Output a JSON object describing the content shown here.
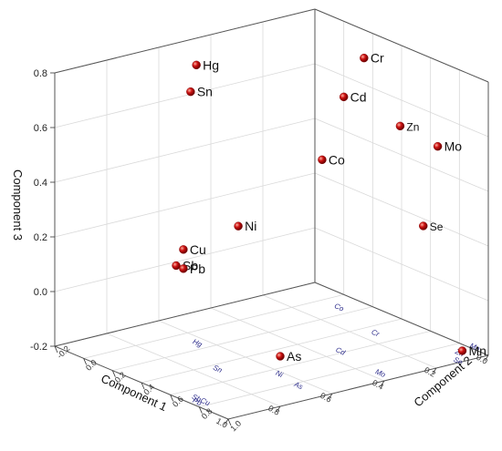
{
  "chart_data": {
    "type": "scatter",
    "dimensions": 3,
    "xlabel": "Component 1",
    "ylabel": "Component 2",
    "zlabel": "Component 3",
    "xlim": [
      0.0,
      1.0
    ],
    "ylim": [
      -0.2,
      1.0
    ],
    "zlim": [
      -0.2,
      0.8
    ],
    "xticks": [
      "0.0",
      "0.2",
      "0.4",
      "0.6",
      "0.8",
      "1.0"
    ],
    "yticks": [
      "-0.2",
      "0.0",
      "0.2",
      "0.4",
      "0.6",
      "0.8",
      "1.0"
    ],
    "zticks": [
      "-0.2",
      "0.0",
      "0.2",
      "0.4",
      "0.6",
      "0.8"
    ],
    "grid": true,
    "marker_color": "#cc1111",
    "projection_color": "#2a2a8a",
    "points": [
      {
        "label": "Cr",
        "x": 0.1,
        "y": 0.32,
        "z": 0.76
      },
      {
        "label": "Hg",
        "x": 0.5,
        "y": -0.12,
        "z": 0.73
      },
      {
        "label": "Sn",
        "x": 0.7,
        "y": 0.2,
        "z": 0.75
      },
      {
        "label": "Zn",
        "x": 0.2,
        "y": 0.75,
        "z": 0.63
      },
      {
        "label": "Cd",
        "x": 0.2,
        "y": 0.36,
        "z": 0.65
      },
      {
        "label": "Mo",
        "x": 0.1,
        "y": 0.83,
        "z": 0.55
      },
      {
        "label": "Se",
        "x": 0.2,
        "y": 0.91,
        "z": 0.3
      },
      {
        "label": "Ni",
        "x": 0.65,
        "y": 0.44,
        "z": 0.3
      },
      {
        "label": "Cu",
        "x": 0.95,
        "y": 0.6,
        "z": 0.32
      },
      {
        "label": "Sb",
        "x": 0.95,
        "y": 0.55,
        "z": 0.25
      },
      {
        "label": "Pb",
        "x": 0.95,
        "y": 0.6,
        "z": 0.25
      },
      {
        "label": "Co",
        "x": 0.0,
        "y": -0.15,
        "z": 0.26
      },
      {
        "label": "Mn",
        "x": 0.1,
        "y": 1.0,
        "z": -0.16
      },
      {
        "label": "As",
        "x": 0.7,
        "y": 0.82,
        "z": -0.08
      }
    ],
    "floor_labels": [
      {
        "label": "Mn",
        "x": 0.0,
        "y": 0.9
      },
      {
        "label": "Zn",
        "x": 0.07,
        "y": 0.92
      },
      {
        "label": "Se",
        "x": 0.12,
        "y": 1.0
      },
      {
        "label": "Cr",
        "x": 0.16,
        "y": 0.5
      },
      {
        "label": "Co",
        "x": 0.1,
        "y": 0.14
      },
      {
        "label": "Cd",
        "x": 0.35,
        "y": 0.6
      },
      {
        "label": "Mo",
        "x": 0.38,
        "y": 0.93
      },
      {
        "label": "Hg",
        "x": 0.65,
        "y": 0.15
      },
      {
        "label": "Ni",
        "x": 0.63,
        "y": 0.68
      },
      {
        "label": "As",
        "x": 0.65,
        "y": 0.85
      },
      {
        "label": "Sn",
        "x": 0.75,
        "y": 0.47
      },
      {
        "label": "Cu",
        "x": 0.97,
        "y": 0.78
      },
      {
        "label": "Sb",
        "x": 0.97,
        "y": 0.72
      },
      {
        "label": "Pb",
        "x": 0.99,
        "y": 0.76
      }
    ]
  }
}
